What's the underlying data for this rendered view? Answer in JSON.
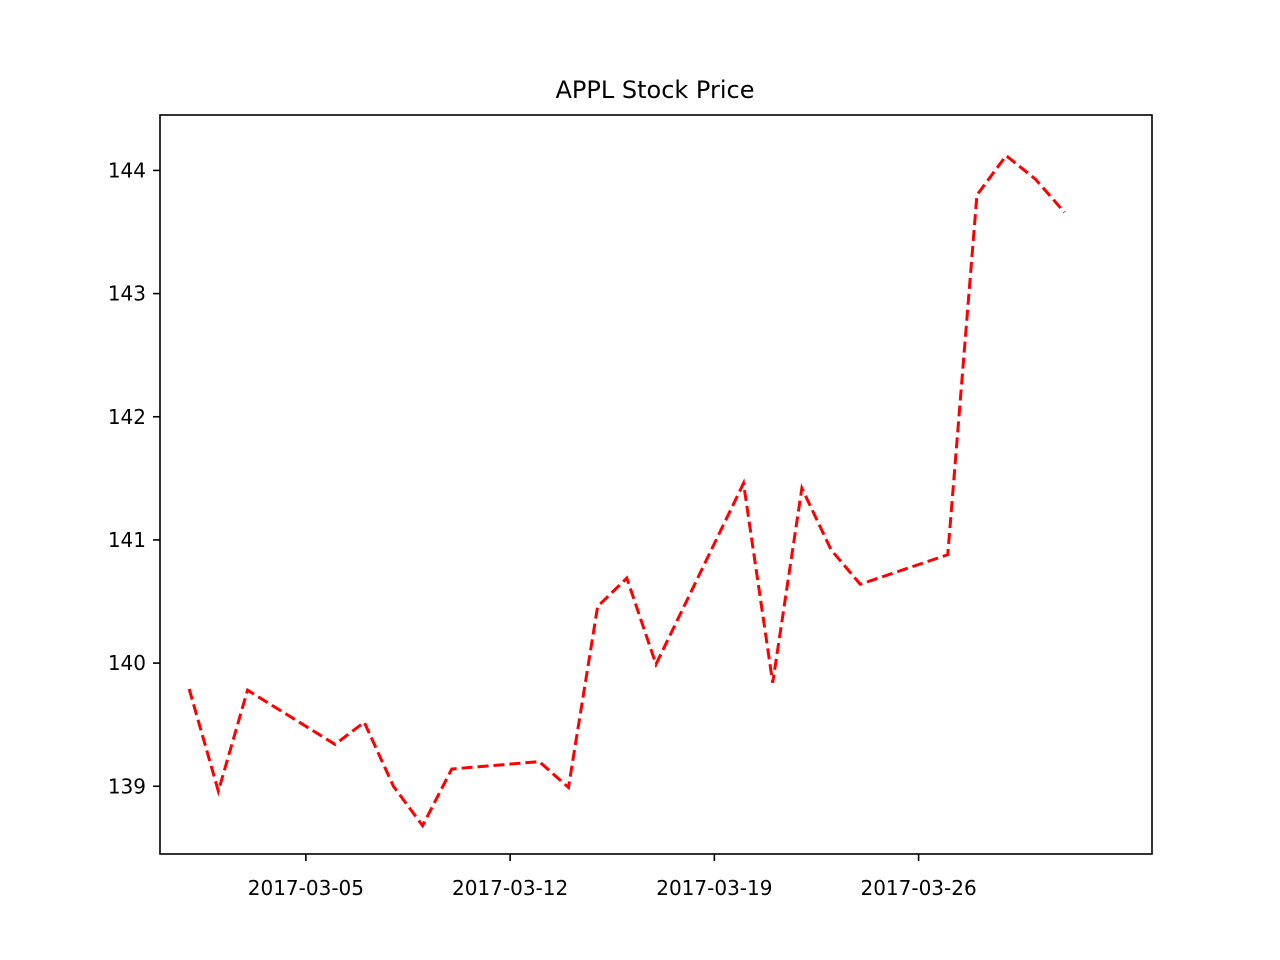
{
  "chart_data": {
    "type": "line",
    "title": "APPL Stock Price",
    "xlabel": "",
    "ylabel": "",
    "x_ticks": [
      "2017-03-05",
      "2017-03-12",
      "2017-03-19",
      "2017-03-26"
    ],
    "y_ticks": [
      139,
      140,
      141,
      142,
      143,
      144
    ],
    "xlim": [
      "2017-02-28",
      "2017-04-03"
    ],
    "ylim": [
      138.45,
      144.45
    ],
    "grid": false,
    "series": [
      {
        "line_style": "dashed",
        "color": "#ff0000",
        "points": [
          {
            "x": "2017-03-01",
            "y": 139.79
          },
          {
            "x": "2017-03-02",
            "y": 138.96
          },
          {
            "x": "2017-03-03",
            "y": 139.78
          },
          {
            "x": "2017-03-06",
            "y": 139.34
          },
          {
            "x": "2017-03-07",
            "y": 139.52
          },
          {
            "x": "2017-03-08",
            "y": 139.0
          },
          {
            "x": "2017-03-09",
            "y": 138.68
          },
          {
            "x": "2017-03-10",
            "y": 139.14
          },
          {
            "x": "2017-03-13",
            "y": 139.2
          },
          {
            "x": "2017-03-14",
            "y": 138.99
          },
          {
            "x": "2017-03-15",
            "y": 140.46
          },
          {
            "x": "2017-03-16",
            "y": 140.69
          },
          {
            "x": "2017-03-17",
            "y": 139.99
          },
          {
            "x": "2017-03-20",
            "y": 141.46
          },
          {
            "x": "2017-03-21",
            "y": 139.84
          },
          {
            "x": "2017-03-22",
            "y": 141.42
          },
          {
            "x": "2017-03-23",
            "y": 140.92
          },
          {
            "x": "2017-03-24",
            "y": 140.64
          },
          {
            "x": "2017-03-27",
            "y": 140.88
          },
          {
            "x": "2017-03-28",
            "y": 143.8
          },
          {
            "x": "2017-03-29",
            "y": 144.12
          },
          {
            "x": "2017-03-30",
            "y": 143.93
          },
          {
            "x": "2017-03-31",
            "y": 143.66
          }
        ]
      }
    ]
  }
}
